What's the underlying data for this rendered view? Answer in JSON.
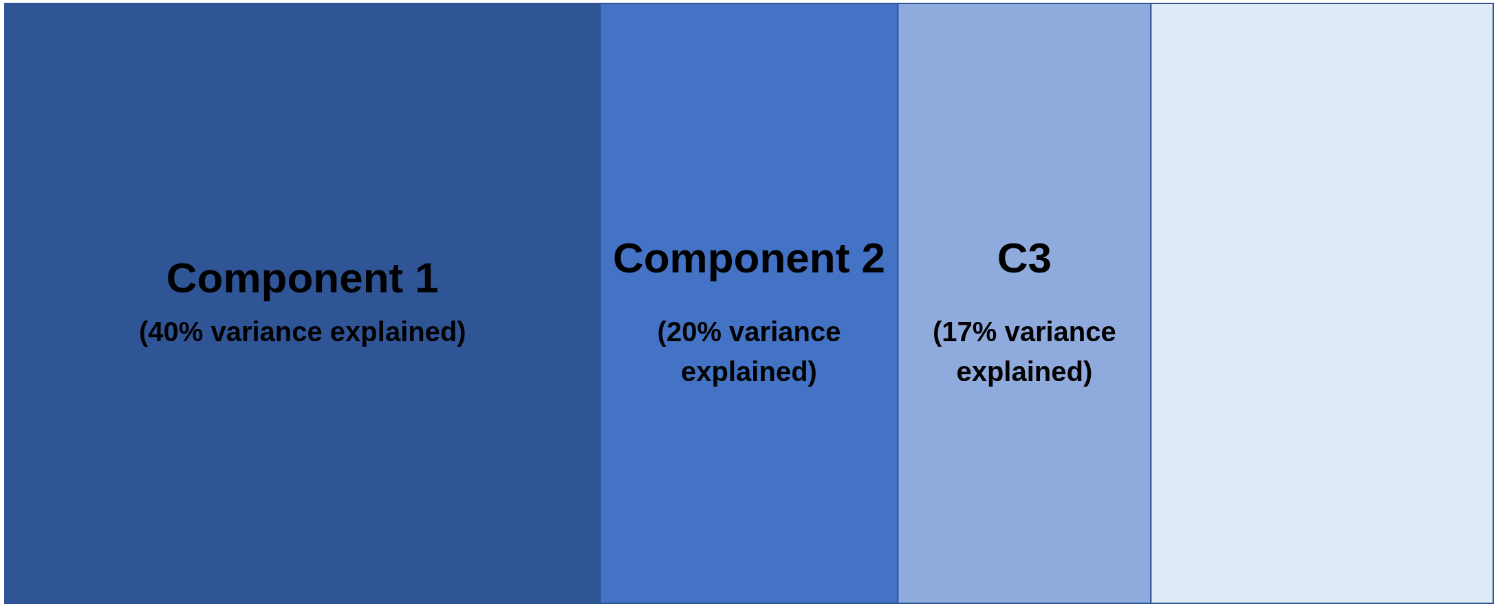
{
  "chart_data": {
    "type": "bar",
    "orientation": "horizontal",
    "stacked": true,
    "categories": [
      null
    ],
    "xlim": [
      0,
      100
    ],
    "tick_labels": false,
    "series": [
      {
        "name": "Component 1",
        "color": "#2f5597",
        "values": [
          40
        ],
        "value_labels": [
          "(40% variance explained)"
        ]
      },
      {
        "name": "Component 2",
        "color": "#4472c4",
        "values": [
          20
        ],
        "value_labels": [
          "(20% variance explained)"
        ]
      },
      {
        "name": "C3",
        "color": "#8faadc",
        "values": [
          17
        ],
        "value_labels": [
          "(17% variance explained)"
        ]
      },
      {
        "color": "#deeaf6",
        "values": [
          23
        ]
      }
    ]
  }
}
